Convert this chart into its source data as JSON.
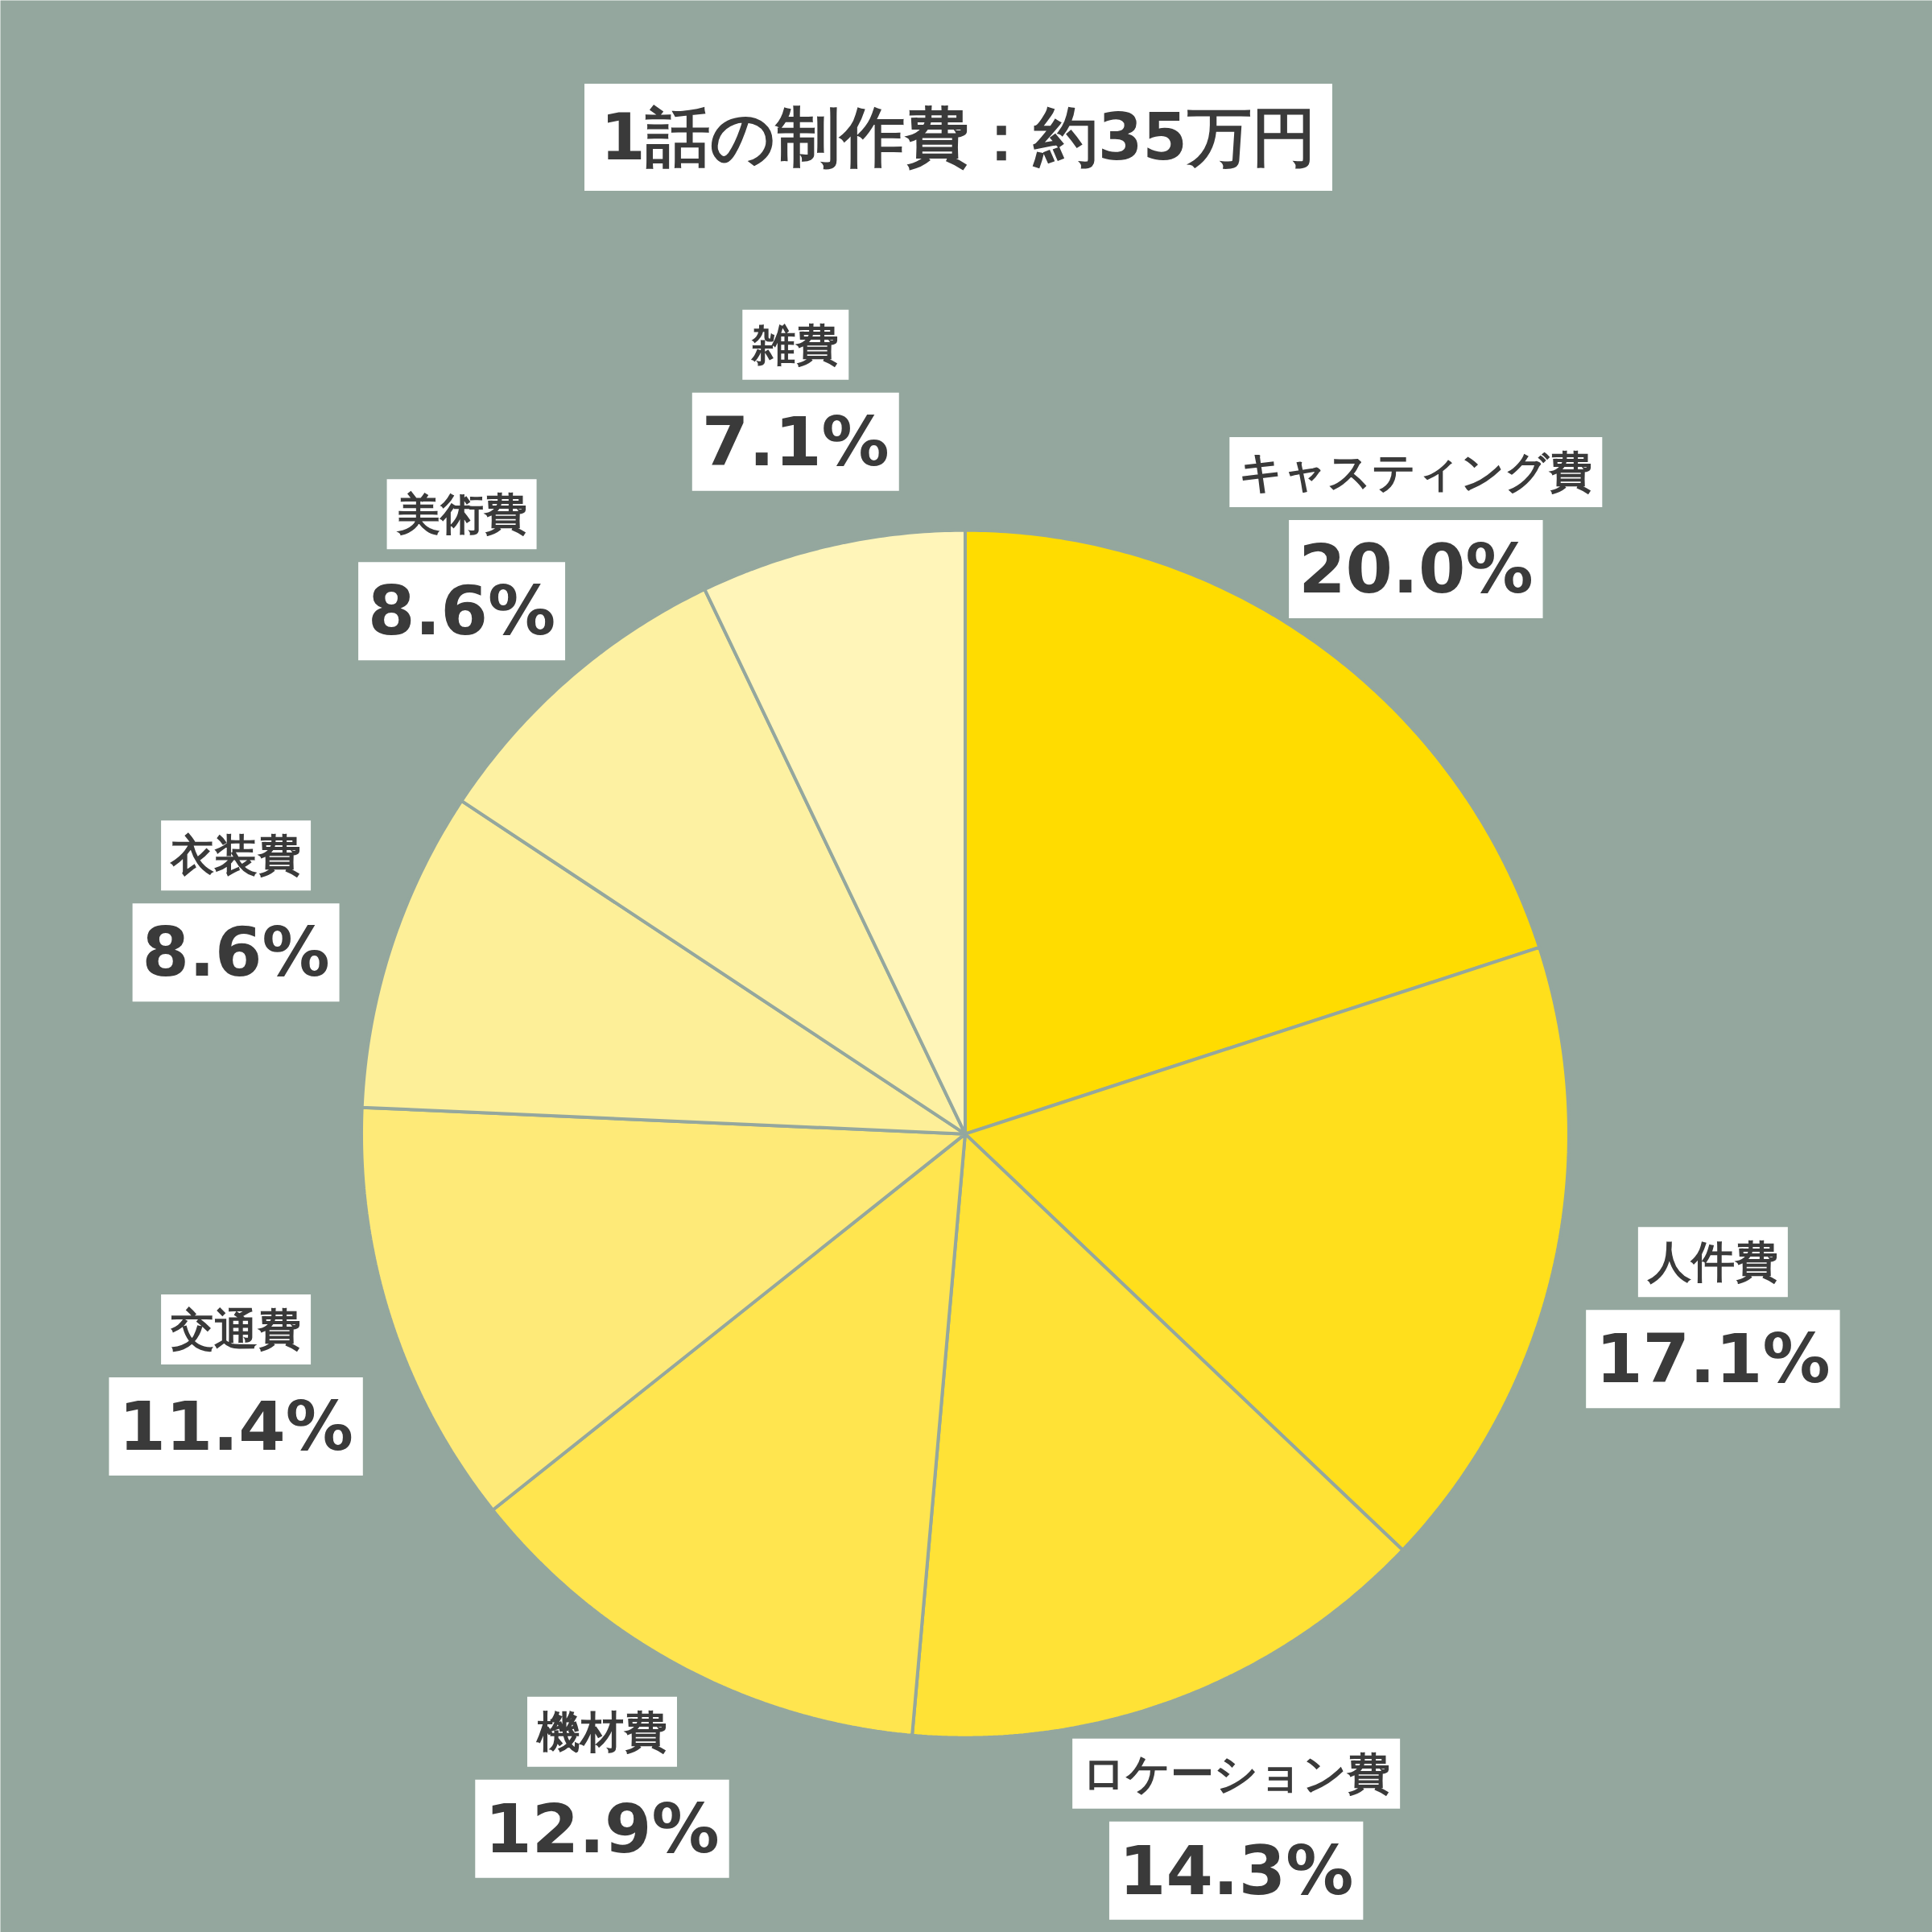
{
  "chart_data": {
    "type": "pie",
    "title": "1話の制作費：約35万円",
    "categories": [
      "キャスティング費",
      "人件費",
      "ロケーション費",
      "機材費",
      "交通費",
      "衣装費",
      "美術費",
      "雑費"
    ],
    "values": [
      20.0,
      17.1,
      14.3,
      12.9,
      11.4,
      8.6,
      8.6,
      7.1
    ],
    "value_labels": [
      "20.0%",
      "17.1%",
      "14.3%",
      "12.9%",
      "11.4%",
      "8.6%",
      "8.6%",
      "7.1%"
    ],
    "colors": [
      "#ffdc00",
      "#ffdf1c",
      "#ffe236",
      "#ffe54f",
      "#feea78",
      "#fdef98",
      "#fdf1a2",
      "#fff5b9"
    ]
  }
}
